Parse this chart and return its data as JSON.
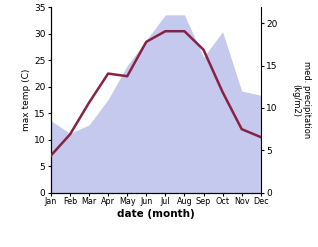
{
  "months": [
    1,
    2,
    3,
    4,
    5,
    6,
    7,
    8,
    9,
    10,
    11,
    12
  ],
  "month_labels": [
    "Jan",
    "Feb",
    "Mar",
    "Apr",
    "May",
    "Jun",
    "Jul",
    "Aug",
    "Sep",
    "Oct",
    "Nov",
    "Dec"
  ],
  "max_temp": [
    7,
    11,
    17,
    22.5,
    22,
    28.5,
    30.5,
    30.5,
    27,
    19,
    12,
    10.5
  ],
  "precipitation": [
    8.5,
    7,
    8,
    11,
    15,
    18,
    21,
    21,
    16,
    19,
    12,
    11.5
  ],
  "temp_ylim": [
    0,
    35
  ],
  "precip_ylim": [
    0,
    21.875
  ],
  "temp_yticks": [
    0,
    5,
    10,
    15,
    20,
    25,
    30,
    35
  ],
  "precip_yticks": [
    0,
    5,
    10,
    15,
    20
  ],
  "xlabel": "date (month)",
  "ylabel_left": "max temp (C)",
  "ylabel_right": "med. precipitation\n(kg/m2)",
  "fill_color": "#b0b8e8",
  "fill_alpha": 0.75,
  "line_color": "#882244",
  "line_width": 1.8,
  "bg_color": "#ffffff"
}
